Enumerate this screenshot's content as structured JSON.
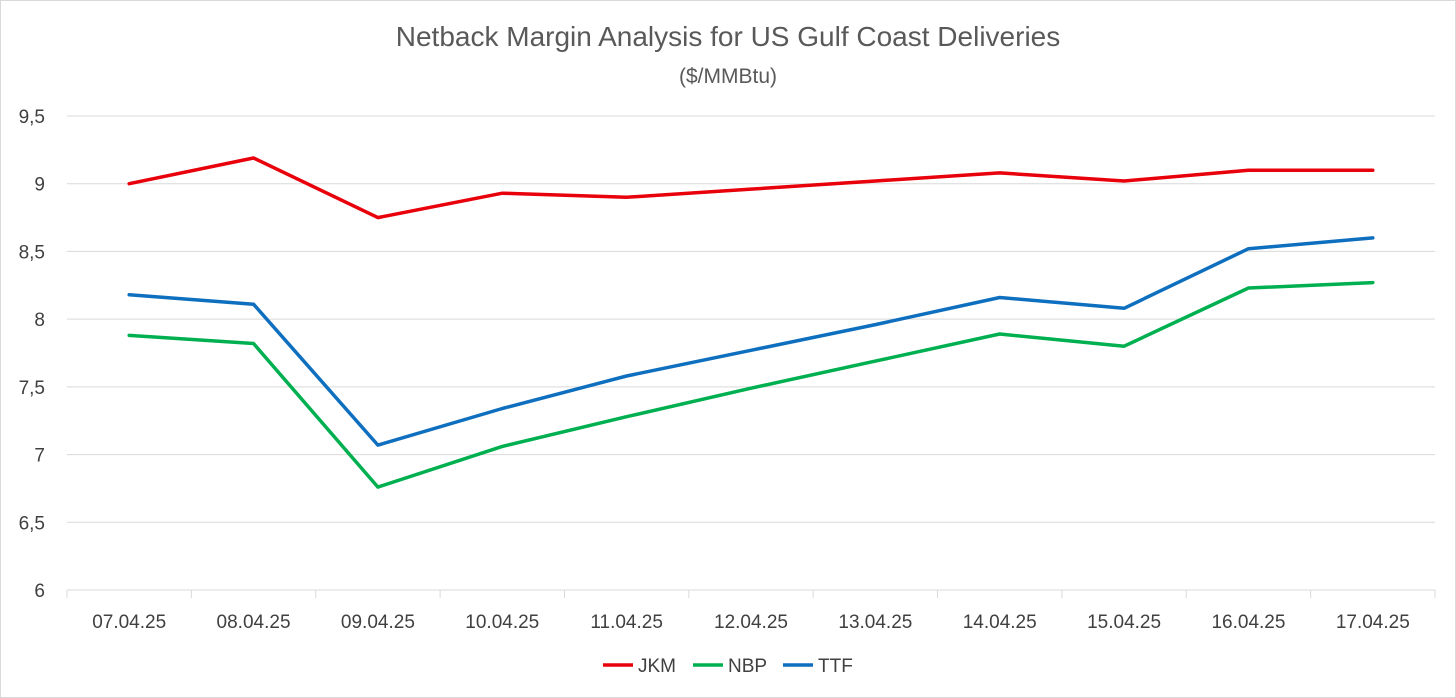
{
  "chart_data": {
    "type": "line",
    "title": "Netback Margin Analysis for US Gulf Coast Deliveries",
    "subtitle": "($/MMBtu)",
    "xlabel": "",
    "ylabel": "",
    "ylim": [
      6,
      9.5
    ],
    "y_ticks": [
      {
        "value": 6,
        "label": "6"
      },
      {
        "value": 6.5,
        "label": "6,5"
      },
      {
        "value": 7,
        "label": "7"
      },
      {
        "value": 7.5,
        "label": "7,5"
      },
      {
        "value": 8,
        "label": "8"
      },
      {
        "value": 8.5,
        "label": "8,5"
      },
      {
        "value": 9,
        "label": "9"
      },
      {
        "value": 9.5,
        "label": "9,5"
      }
    ],
    "grid": true,
    "legend_position": "bottom",
    "categories": [
      "07.04.25",
      "08.04.25",
      "09.04.25",
      "10.04.25",
      "11.04.25",
      "12.04.25",
      "13.04.25",
      "14.04.25",
      "15.04.25",
      "16.04.25",
      "17.04.25"
    ],
    "series": [
      {
        "name": "JKM",
        "color": "#e8000b",
        "values": [
          9.0,
          9.19,
          8.75,
          8.93,
          8.9,
          8.96,
          9.02,
          9.08,
          9.02,
          9.1,
          9.1
        ]
      },
      {
        "name": "NBP",
        "color": "#00b050",
        "values": [
          7.88,
          7.82,
          6.76,
          7.06,
          7.28,
          7.49,
          7.69,
          7.89,
          7.8,
          8.23,
          8.27
        ]
      },
      {
        "name": "TTF",
        "color": "#0f6fbf",
        "values": [
          8.18,
          8.11,
          7.07,
          7.34,
          7.58,
          7.77,
          7.96,
          8.16,
          8.08,
          8.52,
          8.6
        ]
      }
    ]
  }
}
